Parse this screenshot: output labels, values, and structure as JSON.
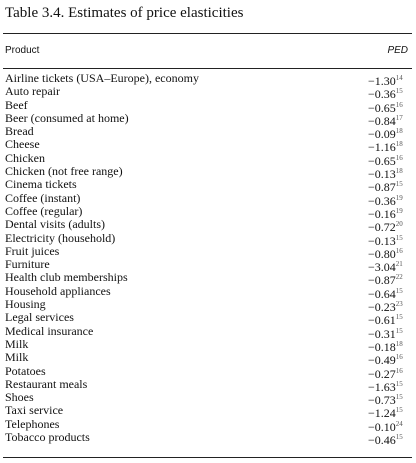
{
  "table": {
    "title": "Table 3.4. Estimates of price elasticities",
    "headers": {
      "product": "Product",
      "ped": "PED"
    },
    "rows": [
      {
        "product": "Airline tickets (USA–Europe), economy",
        "ped": "−1.30",
        "ref": "14"
      },
      {
        "product": "Auto repair",
        "ped": "−0.36",
        "ref": "15"
      },
      {
        "product": "Beef",
        "ped": "−0.65",
        "ref": "16"
      },
      {
        "product": "Beer (consumed at home)",
        "ped": "−0.84",
        "ref": "17"
      },
      {
        "product": "Bread",
        "ped": "−0.09",
        "ref": "18"
      },
      {
        "product": "Cheese",
        "ped": "−1.16",
        "ref": "18"
      },
      {
        "product": "Chicken",
        "ped": "−0.65",
        "ref": "16"
      },
      {
        "product": "Chicken (not free range)",
        "ped": "−0.13",
        "ref": "18"
      },
      {
        "product": "Cinema tickets",
        "ped": "−0.87",
        "ref": "15"
      },
      {
        "product": "Coffee (instant)",
        "ped": "−0.36",
        "ref": "19"
      },
      {
        "product": "Coffee (regular)",
        "ped": "−0.16",
        "ref": "19"
      },
      {
        "product": "Dental visits (adults)",
        "ped": "−0.72",
        "ref": "20"
      },
      {
        "product": "Electricity (household)",
        "ped": "−0.13",
        "ref": "15"
      },
      {
        "product": "Fruit juices",
        "ped": "−0.80",
        "ref": "16"
      },
      {
        "product": "Furniture",
        "ped": "−3.04",
        "ref": "21"
      },
      {
        "product": "Health club memberships",
        "ped": "−0.87",
        "ref": "22"
      },
      {
        "product": "Household appliances",
        "ped": "−0.64",
        "ref": "15"
      },
      {
        "product": "Housing",
        "ped": "−0.23",
        "ref": "23"
      },
      {
        "product": "Legal services",
        "ped": "−0.61",
        "ref": "15"
      },
      {
        "product": "Medical insurance",
        "ped": "−0.31",
        "ref": "15"
      },
      {
        "product": "Milk",
        "ped": "−0.18",
        "ref": "18"
      },
      {
        "product": "Milk",
        "ped": "−0.49",
        "ref": "16"
      },
      {
        "product": "Potatoes",
        "ped": "−0.27",
        "ref": "16"
      },
      {
        "product": "Restaurant meals",
        "ped": "−1.63",
        "ref": "15"
      },
      {
        "product": "Shoes",
        "ped": "−0.73",
        "ref": "15"
      },
      {
        "product": "Taxi service",
        "ped": "−1.24",
        "ref": "15"
      },
      {
        "product": "Telephones",
        "ped": "−0.10",
        "ref": "24"
      },
      {
        "product": "Tobacco products",
        "ped": "−0.46",
        "ref": "15"
      }
    ]
  }
}
